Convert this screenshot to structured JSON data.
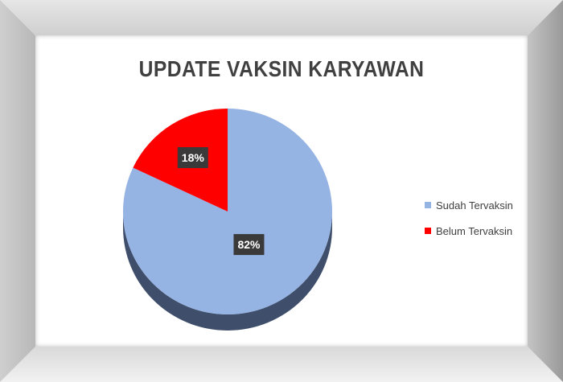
{
  "colors": {
    "slice_sudah": "#95b3e3",
    "slice_belum": "#ff0000",
    "side_sudah": "#3f4f6b",
    "label_bg": "#3a3a3a"
  },
  "chart_data": {
    "type": "pie",
    "title": "UPDATE VAKSIN KARYAWAN",
    "slices": [
      {
        "label": "Sudah Tervaksin",
        "value": 82,
        "display": "82%"
      },
      {
        "label": "Belum Tervaksin",
        "value": 18,
        "display": "18%"
      }
    ],
    "legend_position": "right"
  }
}
